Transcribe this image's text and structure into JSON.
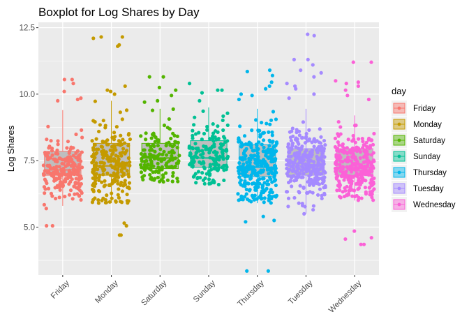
{
  "chart_data": {
    "type": "boxplot",
    "title": "Boxplot for Log Shares by Day",
    "xlabel": "",
    "ylabel": "Log Shares",
    "ylim": [
      3.2,
      12.7
    ],
    "yticks": [
      "5.0",
      "7.5",
      "10.0",
      "12.5"
    ],
    "ytick_values": [
      5.0,
      7.5,
      10.0,
      12.5
    ],
    "grid": true,
    "legend_position": "right",
    "legend_title": "day",
    "categories": [
      "Friday",
      "Monday",
      "Saturday",
      "Sunday",
      "Thursday",
      "Tuesday",
      "Wednesday"
    ],
    "colors": [
      "#F8766D",
      "#C49A00",
      "#53B400",
      "#00C094",
      "#00B6EB",
      "#A58AFF",
      "#FB61D7"
    ],
    "boxes": [
      {
        "name": "Friday",
        "min": 5.8,
        "q1": 6.95,
        "median": 7.15,
        "q3": 7.85,
        "max": 9.4,
        "n": 220,
        "outliers": [
          10.55,
          10.55,
          10.4,
          10.1,
          9.85,
          9.8,
          9.75,
          5.05,
          5.05,
          5.7
        ]
      },
      {
        "name": "Monday",
        "min": 5.9,
        "q1": 6.95,
        "median": 7.3,
        "q3": 8.15,
        "max": 9.75,
        "n": 230,
        "outliers": [
          12.15,
          12.15,
          12.1,
          11.85,
          11.8,
          10.3,
          10.15,
          10.1,
          10.0,
          5.15,
          5.05,
          4.7,
          4.7
        ]
      },
      {
        "name": "Saturday",
        "min": 6.7,
        "q1": 7.2,
        "median": 7.6,
        "q3": 8.15,
        "max": 9.45,
        "n": 150,
        "outliers": [
          10.65,
          10.65,
          10.25,
          10.15,
          9.95,
          9.75,
          9.7
        ]
      },
      {
        "name": "Sunday",
        "min": 6.55,
        "q1": 7.25,
        "median": 7.6,
        "q3": 8.25,
        "max": 9.5,
        "n": 160,
        "outliers": [
          10.4,
          10.15,
          10.15,
          10.05,
          9.75
        ]
      },
      {
        "name": "Thursday",
        "min": 5.9,
        "q1": 6.9,
        "median": 7.25,
        "q3": 8.1,
        "max": 9.45,
        "n": 300,
        "outliers": [
          10.9,
          10.85,
          10.7,
          10.45,
          10.3,
          10.2,
          10.0,
          9.95,
          9.8,
          5.4,
          5.25,
          5.2,
          3.35,
          3.35
        ]
      },
      {
        "name": "Tuesday",
        "min": 5.5,
        "q1": 6.95,
        "median": 7.3,
        "q3": 7.95,
        "max": 9.45,
        "n": 290,
        "outliers": [
          12.25,
          12.2,
          11.3,
          11.3,
          11.1,
          10.9,
          10.8,
          10.65,
          10.4,
          10.3,
          10.2,
          10.0,
          9.85,
          5.5
        ]
      },
      {
        "name": "Wednesday",
        "min": 6.0,
        "q1": 6.95,
        "median": 7.25,
        "q3": 7.95,
        "max": 9.2,
        "n": 300,
        "outliers": [
          11.2,
          11.2,
          10.5,
          10.45,
          10.4,
          10.3,
          10.15,
          9.95,
          9.8,
          4.85,
          4.6,
          4.55,
          4.35,
          4.35
        ]
      }
    ]
  }
}
